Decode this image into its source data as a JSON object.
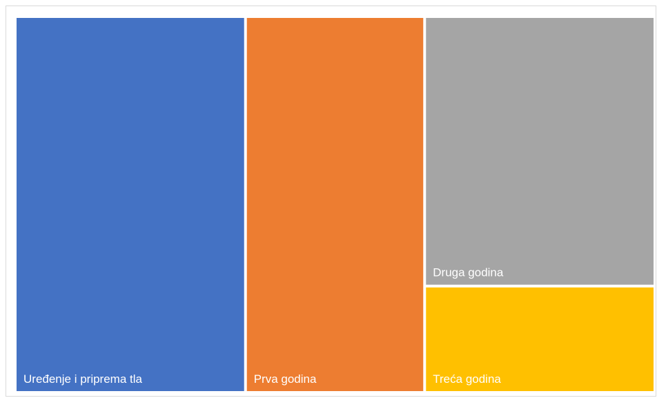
{
  "chart_data": {
    "type": "treemap",
    "title": "",
    "items": [
      {
        "label": "Uređenje i priprema tla",
        "value": 36,
        "color": "#4472C4"
      },
      {
        "label": "Prva godina",
        "value": 28,
        "color": "#ED7D31"
      },
      {
        "label": "Druga godina",
        "value": 26,
        "color": "#A5A5A5"
      },
      {
        "label": "Treća godina",
        "value": 10,
        "color": "#FFC000"
      }
    ]
  }
}
